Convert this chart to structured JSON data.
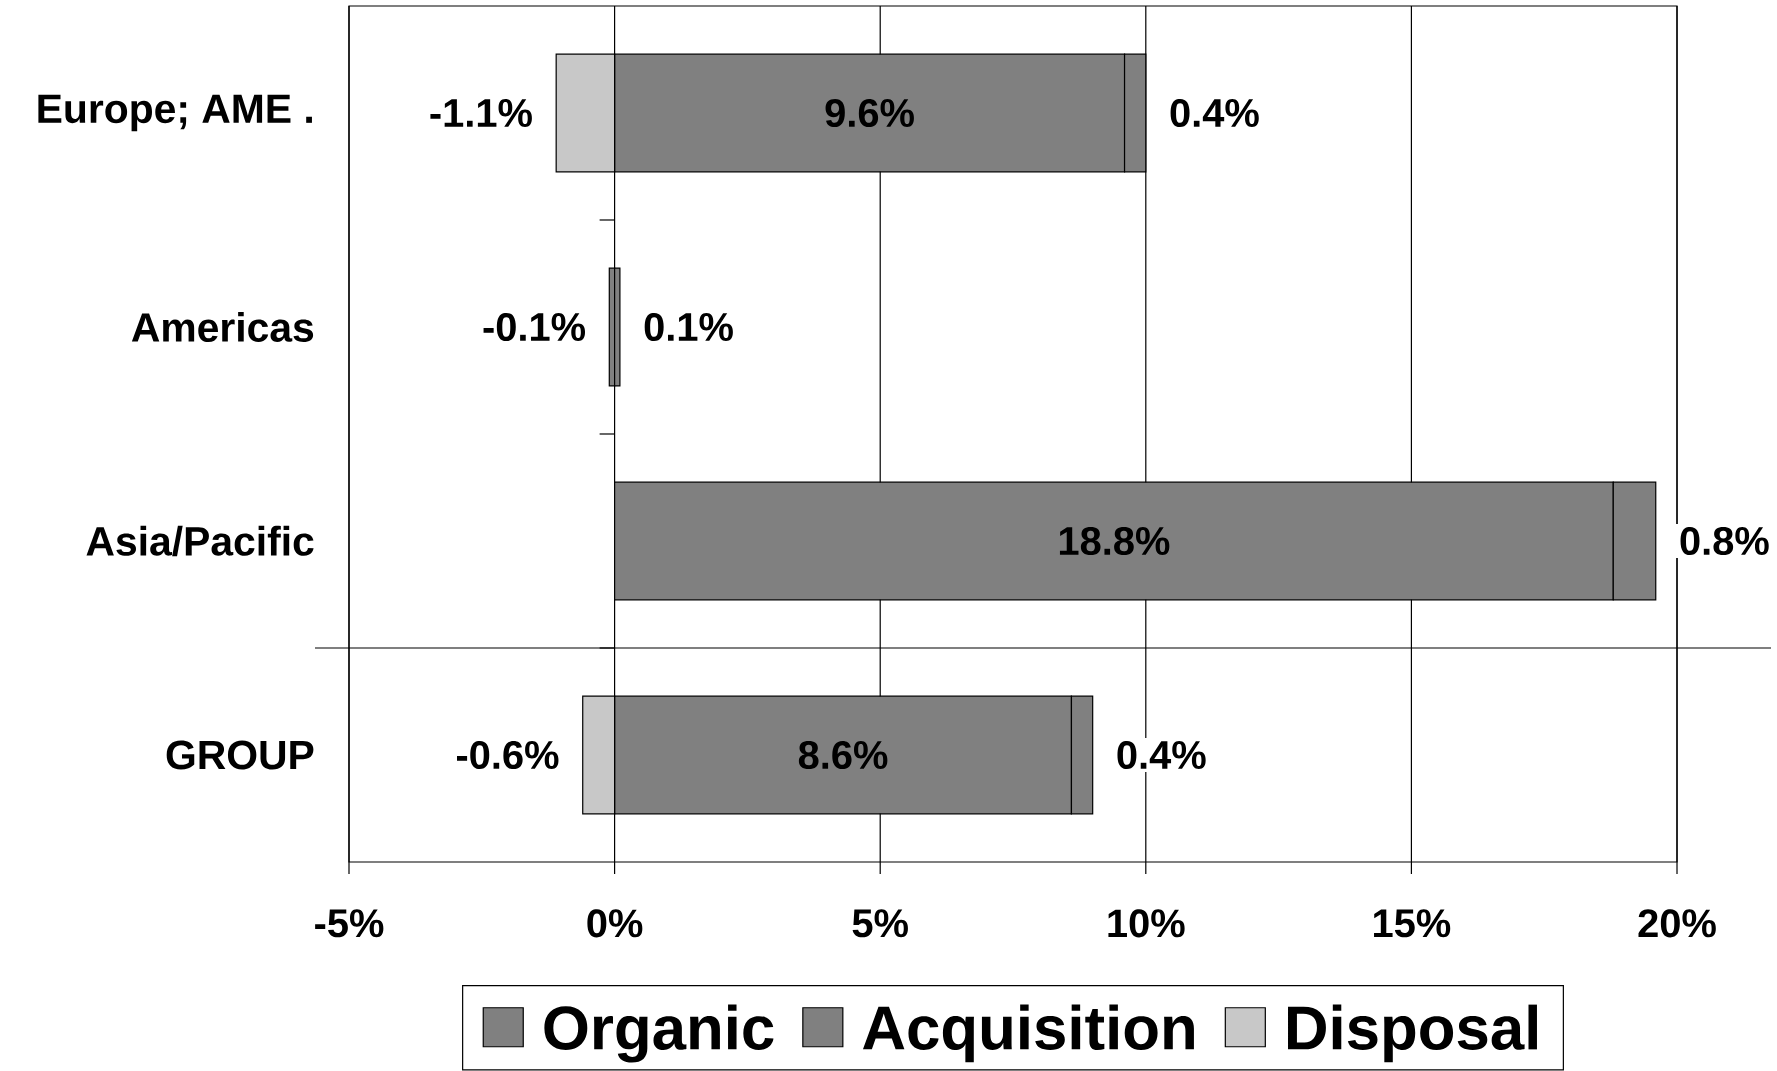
{
  "chart_data": {
    "type": "bar",
    "orientation": "horizontal",
    "stacked": true,
    "categories": [
      "Europe; AME .",
      "Americas",
      "Asia/Pacific",
      "GROUP"
    ],
    "series": [
      {
        "name": "Organic",
        "color": "#808080",
        "values": [
          9.6,
          -0.1,
          18.8,
          8.6
        ],
        "value_labels": [
          "9.6%",
          "-0.1%",
          "18.8%",
          "8.6%"
        ]
      },
      {
        "name": "Acquisition",
        "color": "#808080",
        "values": [
          0.4,
          0.1,
          0.8,
          0.4
        ],
        "value_labels": [
          "0.4%",
          "0.1%",
          "0.8%",
          "0.4%"
        ]
      },
      {
        "name": "Disposal",
        "color": "#c8c8c8",
        "values": [
          -1.1,
          null,
          null,
          -0.6
        ],
        "value_labels": [
          "-1.1%",
          null,
          null,
          "-0.6%"
        ]
      }
    ],
    "xlim": [
      -5,
      20
    ],
    "xticks": [
      {
        "value": -5,
        "label": "-5%"
      },
      {
        "value": 0,
        "label": "0%"
      },
      {
        "value": 5,
        "label": "5%"
      },
      {
        "value": 10,
        "label": "10%"
      },
      {
        "value": 15,
        "label": "15%"
      },
      {
        "value": 20,
        "label": "20%"
      }
    ],
    "grid": "x",
    "legend": "bottom"
  }
}
